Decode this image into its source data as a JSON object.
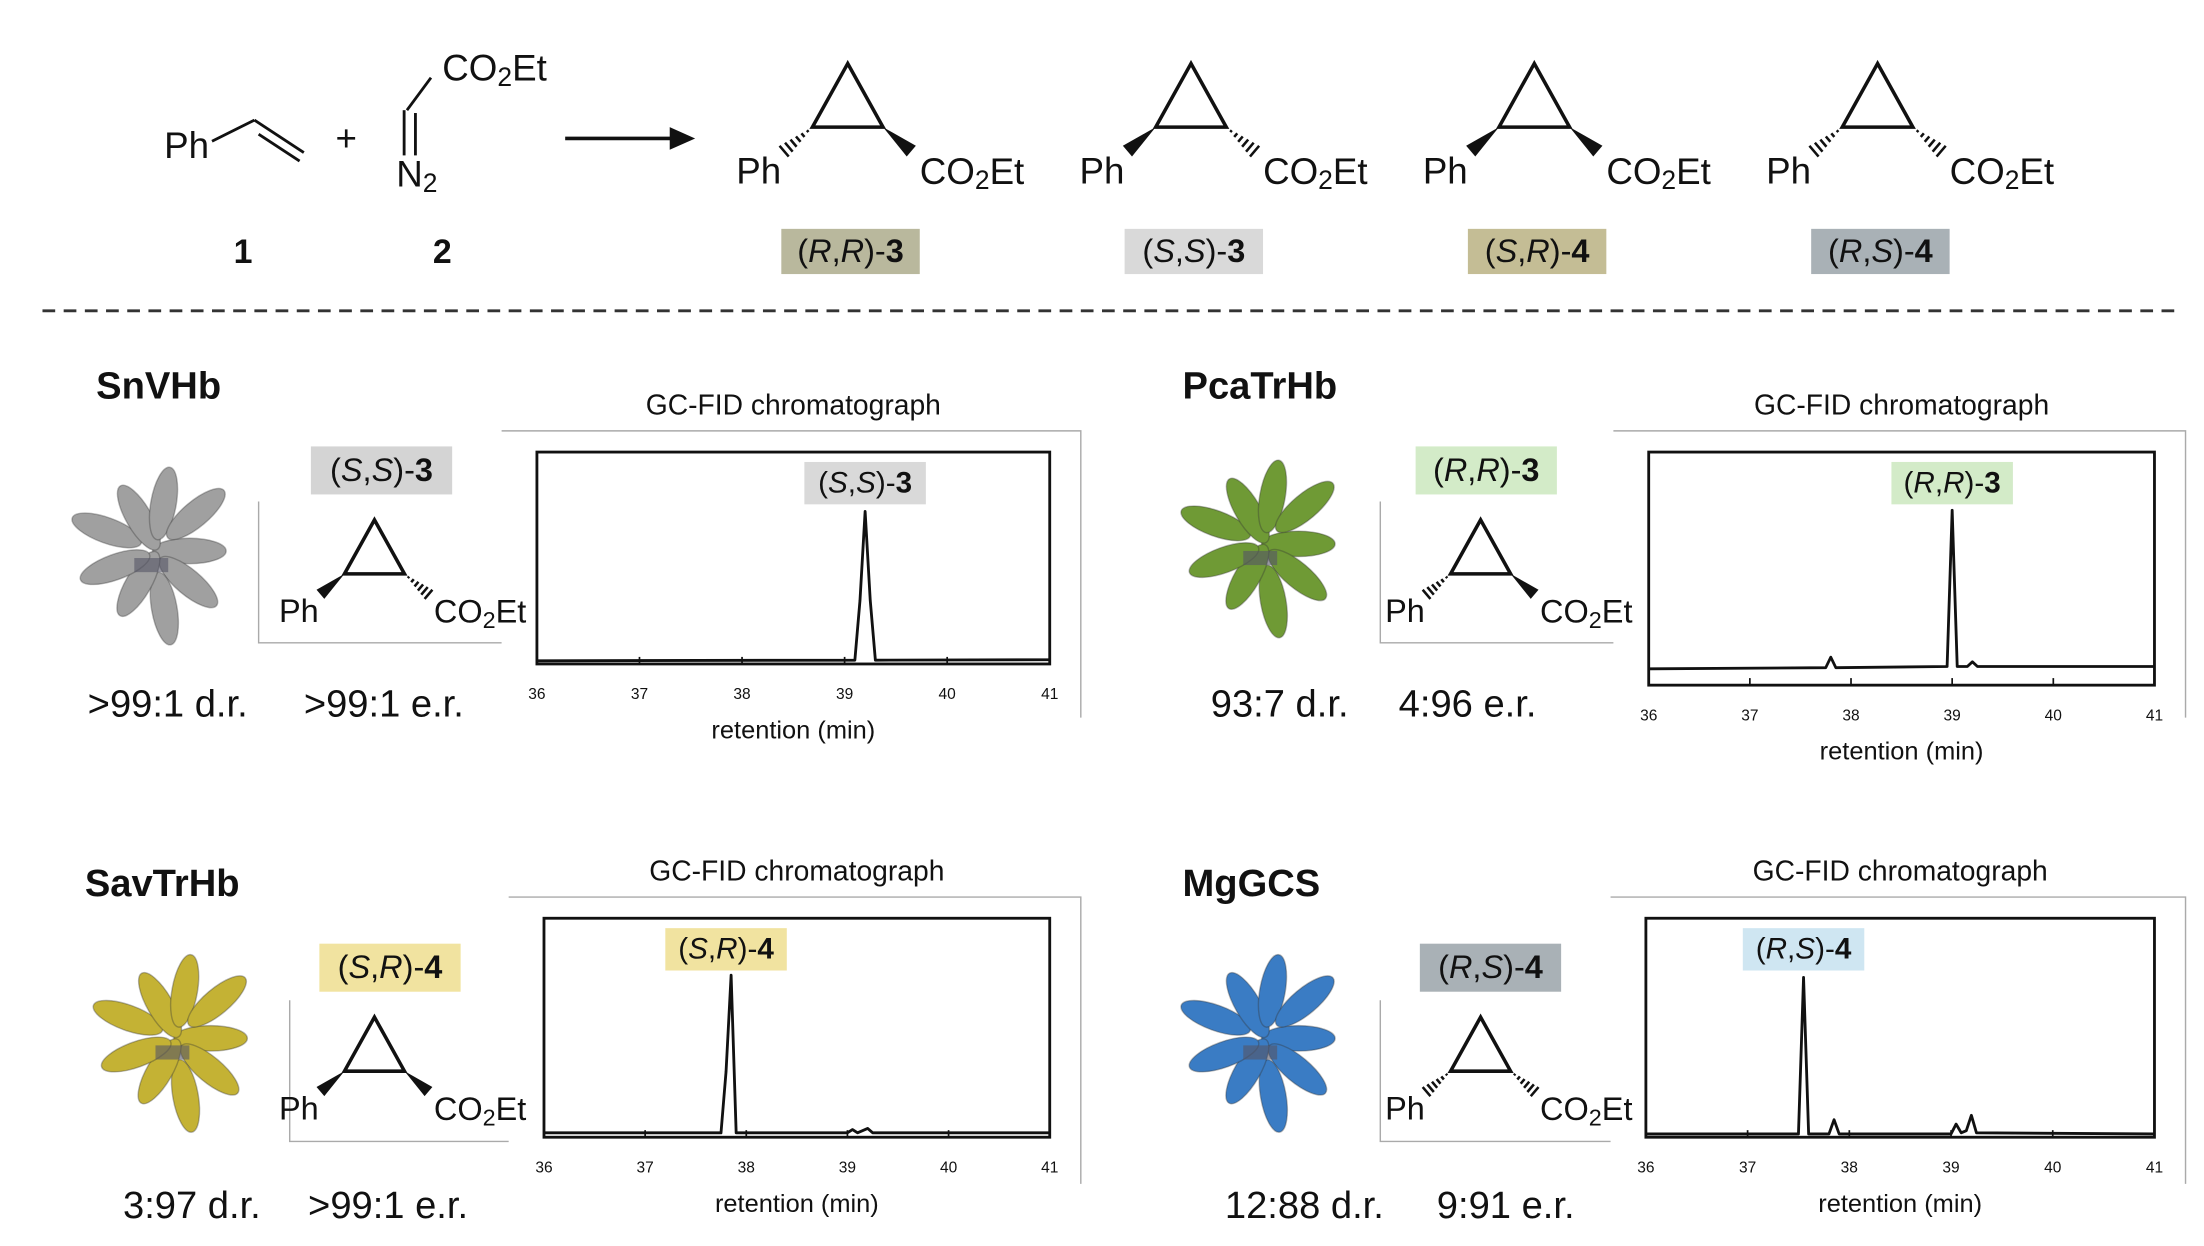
{
  "scheme": {
    "reactants": [
      {
        "formula": "Ph",
        "number": "1"
      },
      {
        "top": "CO2Et",
        "bottom": "N2",
        "number": "2"
      }
    ],
    "plus": "+",
    "products": [
      {
        "left": "Ph",
        "right": "CO2Et",
        "label": "(R,R)-3",
        "color": "#b9b89d"
      },
      {
        "left": "Ph",
        "right": "CO2Et",
        "label": "(S,S)-3",
        "color": "#d9d9d9"
      },
      {
        "left": "Ph",
        "right": "CO2Et",
        "label": "(S,R)-4",
        "color": "#c4bd95"
      },
      {
        "left": "Ph",
        "right": "CO2Et",
        "label": "(R,S)-4",
        "color": "#a9b1b6"
      }
    ]
  },
  "chart_data": [
    {
      "type": "line",
      "enzyme": "SnVHb",
      "product": "(S,S)-3",
      "product_color": "#d4d4d4",
      "structure_labels": [
        "Ph",
        "CO2Et"
      ],
      "dr": ">99:1 d.r.",
      "er": ">99:1 e.r.",
      "protein_color": "#a0a0a0",
      "title": "GC-FID chromatograph",
      "xlabel": "retention (min)",
      "xlim": [
        36,
        41
      ],
      "xticks": [
        36,
        37,
        38,
        39,
        40,
        41
      ],
      "ylim": [
        0,
        100
      ],
      "x": [
        36,
        39.1,
        39.15,
        39.2,
        39.25,
        39.3,
        41
      ],
      "series": [
        {
          "color": "#111111",
          "values": [
            1.5,
            1.8,
            30,
            72,
            30,
            1.8,
            2
          ]
        }
      ],
      "peak_label": "(S,S)-3",
      "peak_label_x": 39.2,
      "peak_label_color": "#d9d9d9"
    },
    {
      "type": "line",
      "enzyme": "PcaTrHb",
      "product": "(R,R)-3",
      "product_color": "#d3ebc8",
      "structure_labels": [
        "Ph",
        "CO2Et"
      ],
      "dr": "93:7 d.r.",
      "er": "4:96 e.r.",
      "protein_color": "#6f9a35",
      "title": "GC-FID chromatograph",
      "xlabel": "retention (min)",
      "xlim": [
        36,
        41
      ],
      "xticks": [
        36,
        37,
        38,
        39,
        40,
        41
      ],
      "ylim": [
        0,
        100
      ],
      "x": [
        36,
        37.75,
        37.8,
        37.85,
        38.95,
        39.0,
        39.05,
        39.15,
        39.2,
        39.25,
        41
      ],
      "series": [
        {
          "color": "#111111",
          "values": [
            7,
            7.5,
            12,
            7.5,
            8,
            75,
            8,
            8,
            10,
            8,
            8
          ]
        }
      ],
      "peak_label": "(R,R)-3",
      "peak_label_x": 39.0,
      "peak_label_color": "#d3ebc8"
    },
    {
      "type": "line",
      "enzyme": "SavTrHb",
      "product": "(S,R)-4",
      "product_color": "#f1e3a0",
      "structure_labels": [
        "Ph",
        "CO2Et"
      ],
      "dr": "3:97 d.r.",
      "er": ">99:1 e.r.",
      "protein_color": "#c4b234",
      "title": "GC-FID chromatograph",
      "xlabel": "retention (min)",
      "xlim": [
        36,
        41
      ],
      "xticks": [
        36,
        37,
        38,
        39,
        40,
        41
      ],
      "ylim": [
        0,
        100
      ],
      "x": [
        36,
        37.75,
        37.8,
        37.85,
        37.9,
        39.0,
        39.05,
        39.1,
        39.2,
        39.25,
        41
      ],
      "series": [
        {
          "color": "#111111",
          "values": [
            2,
            2,
            30,
            74,
            2,
            2,
            3.5,
            2,
            4,
            2,
            2
          ]
        }
      ],
      "peak_label": "(S,R)-4",
      "peak_label_x": 37.8,
      "peak_label_color": "#f1e3a0"
    },
    {
      "type": "line",
      "enzyme": "MgGCS",
      "product": "(R,S)-4",
      "product_color": "#a9b1b6",
      "structure_labels": [
        "Ph",
        "CO2Et"
      ],
      "dr": "12:88 d.r.",
      "er": "9:91 e.r.",
      "protein_color": "#3a7cc4",
      "title": "GC-FID chromatograph",
      "xlabel": "retention (min)",
      "xlim": [
        36,
        41
      ],
      "xticks": [
        36,
        37,
        38,
        39,
        40,
        41
      ],
      "ylim": [
        0,
        100
      ],
      "x": [
        36,
        37.5,
        37.55,
        37.6,
        37.8,
        37.85,
        37.9,
        39.0,
        39.05,
        39.1,
        39.15,
        39.2,
        39.25,
        41
      ],
      "series": [
        {
          "color": "#111111",
          "values": [
            1.5,
            1.5,
            73,
            1.5,
            1.5,
            8,
            1.5,
            1.5,
            6,
            2,
            3,
            10,
            2,
            1.5
          ]
        }
      ],
      "peak_label": "(R,S)-4",
      "peak_label_x": 37.55,
      "peak_label_color": "#cfe6f2"
    }
  ]
}
